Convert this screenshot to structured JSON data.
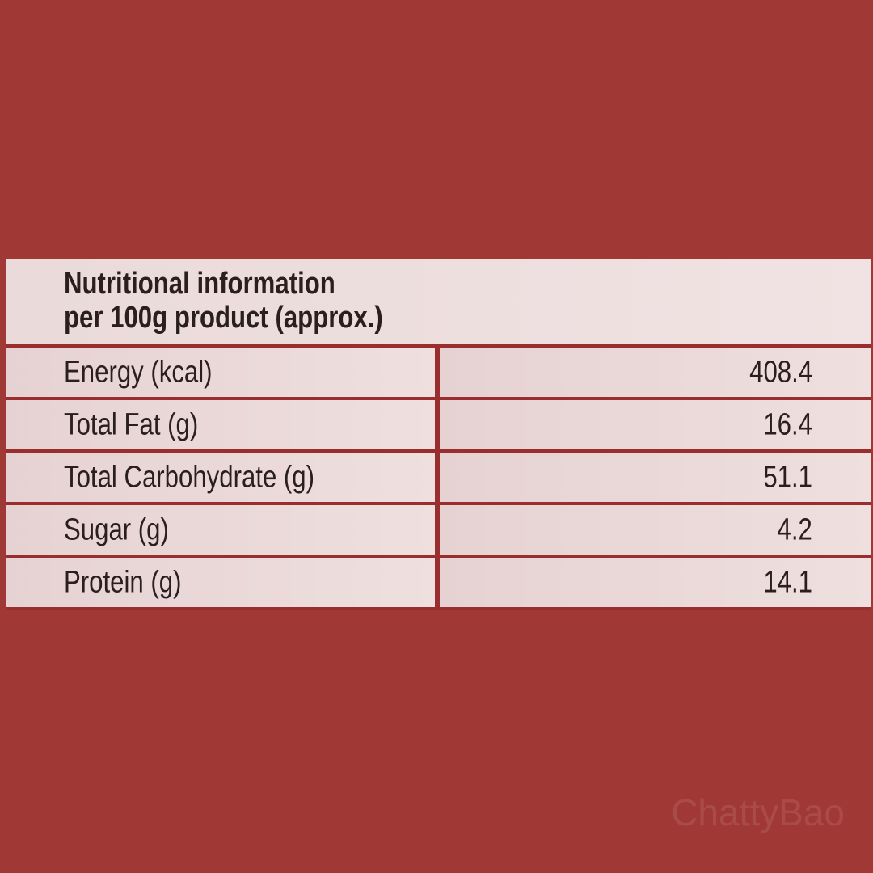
{
  "header": {
    "title": "Nutritional information",
    "subtitle": "per 100g product (approx.)"
  },
  "table": {
    "rows": [
      [
        "Energy (kcal)",
        408.4
      ],
      [
        "Total Fat (g)",
        16.4
      ],
      [
        "Total Carbohydrate (g)",
        51.1
      ],
      [
        "Sugar (g)",
        4.2
      ],
      [
        "Protein (g)",
        14.1
      ]
    ]
  },
  "watermark": "ChattyBao"
}
